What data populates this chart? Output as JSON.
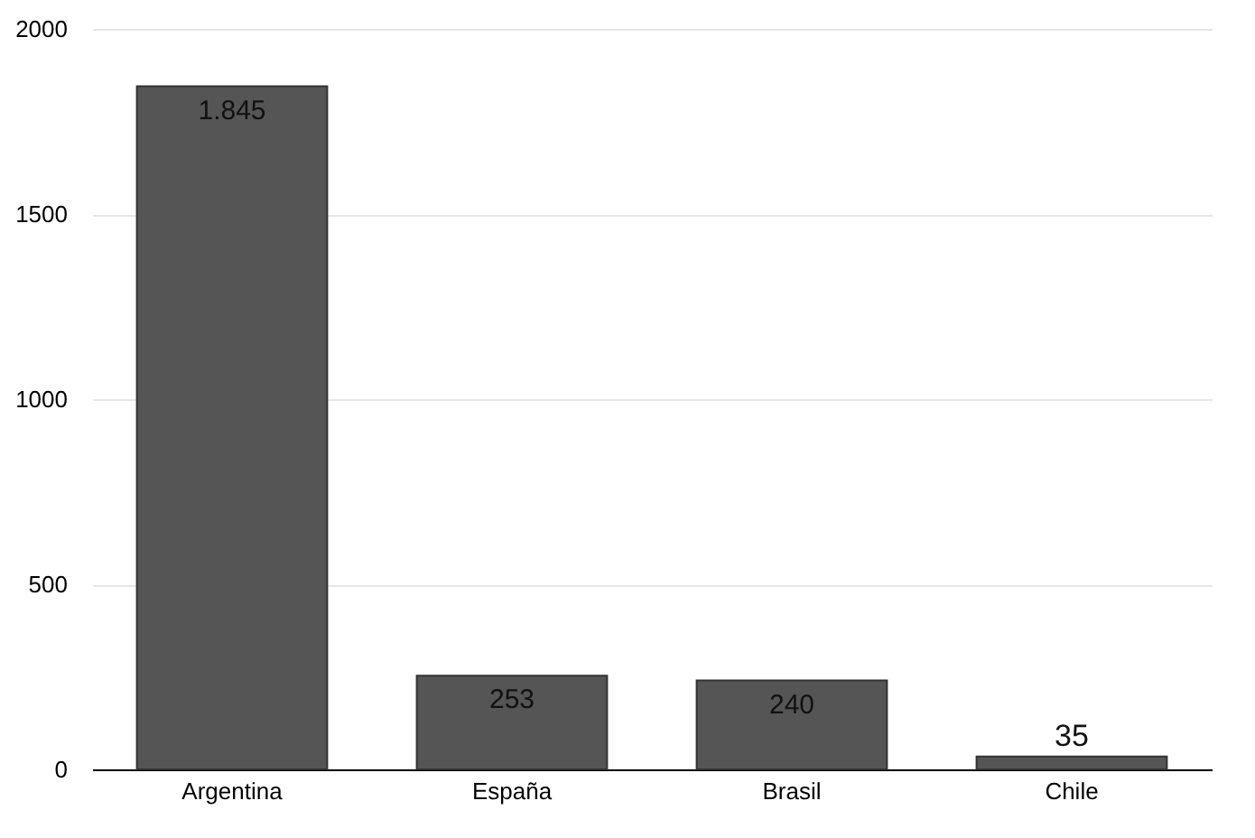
{
  "chart_data": {
    "type": "bar",
    "categories": [
      "Argentina",
      "España",
      "Brasil",
      "Chile"
    ],
    "values": [
      1845,
      253,
      240,
      35
    ],
    "value_labels": [
      "1.845",
      "253",
      "240",
      "35"
    ],
    "color": "#555555",
    "ylim": [
      0,
      2000
    ],
    "yticks": [
      0,
      500,
      1000,
      1500,
      2000
    ],
    "grid": "y"
  }
}
